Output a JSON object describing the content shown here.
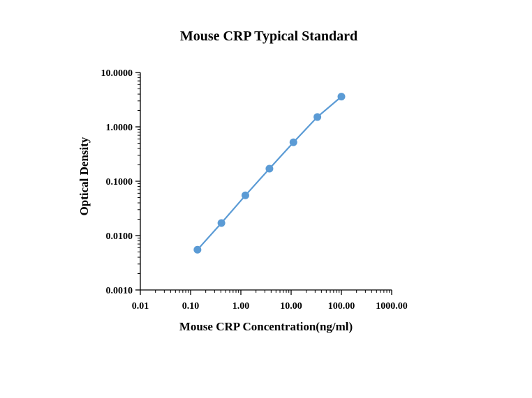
{
  "chart_data": {
    "type": "line",
    "title": "Mouse CRP Typical Standard",
    "xlabel": "Mouse CRP Concentration(ng/ml)",
    "ylabel": "Optical Density",
    "x_scale": "log",
    "y_scale": "log",
    "xlim": [
      0.01,
      1000
    ],
    "ylim": [
      0.001,
      10
    ],
    "x_ticks": [
      "0.01",
      "0.10",
      "1.00",
      "10.00",
      "100.00",
      "1000.00"
    ],
    "y_ticks": [
      "0.0010",
      "0.0100",
      "0.1000",
      "1.0000",
      "10.0000"
    ],
    "grid": false,
    "series": [
      {
        "x": [
          0.137,
          0.41,
          1.23,
          3.7,
          11.1,
          33.3,
          100
        ],
        "y": [
          0.0055,
          0.017,
          0.055,
          0.17,
          0.52,
          1.52,
          3.6
        ],
        "color": "#5b9bd5"
      }
    ]
  }
}
